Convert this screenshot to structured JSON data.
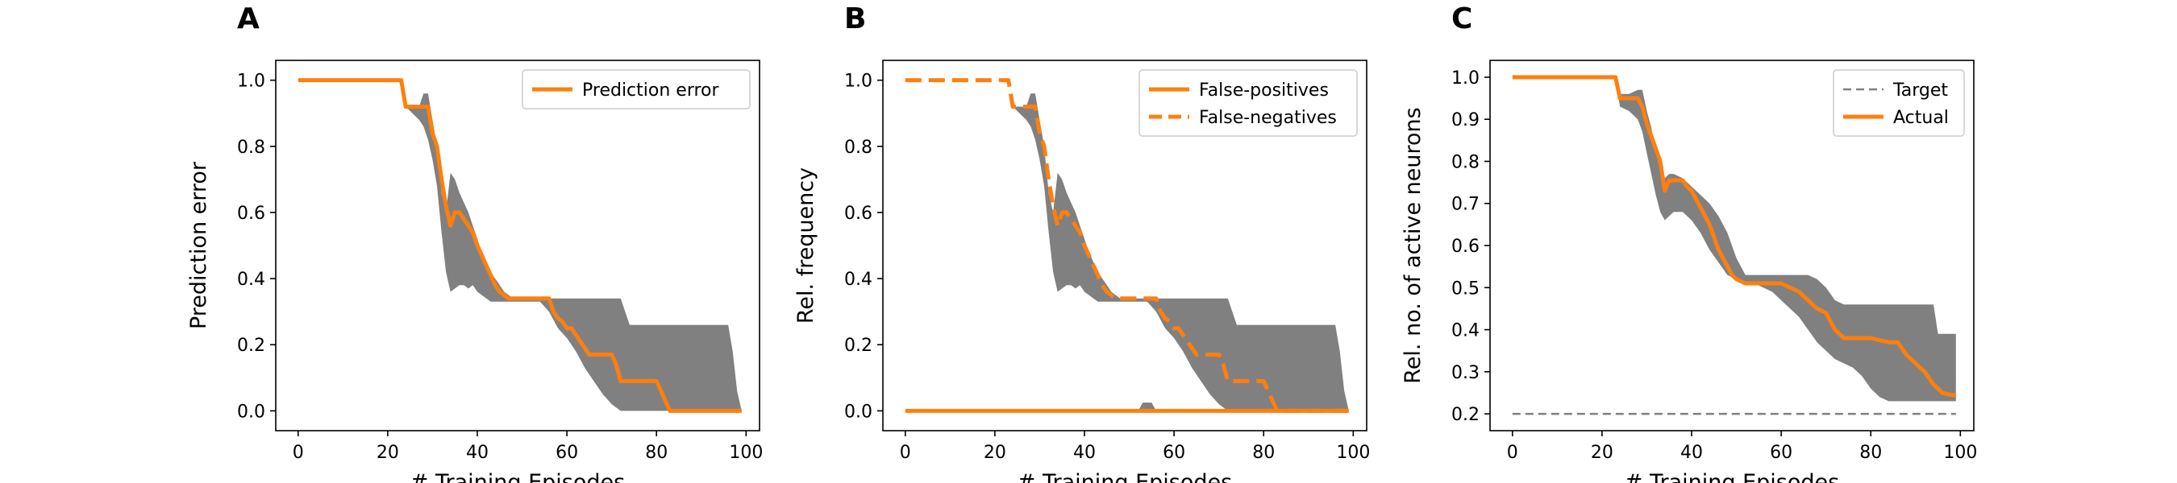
{
  "colors": {
    "actual": "#ff7f0e",
    "band": "#808080",
    "target": "#808080",
    "axis": "#000000"
  },
  "chart_data": [
    {
      "type": "line",
      "panel": "A",
      "title": "",
      "xlabel": "# Training Episodes",
      "ylabel": "Prediction error",
      "xlim": [
        -5,
        103
      ],
      "ylim": [
        -0.06,
        1.06
      ],
      "xticks": [
        0,
        20,
        40,
        60,
        80,
        100
      ],
      "xtick_labels": [
        "0",
        "20",
        "40",
        "60",
        "80",
        "100"
      ],
      "yticks": [
        0,
        0.2,
        0.4,
        0.6,
        0.8,
        1.0
      ],
      "ytick_labels": [
        "0.0",
        "0.2",
        "0.4",
        "0.6",
        "0.8",
        "1.0"
      ],
      "grid": false,
      "legend": {
        "placement": "top-right",
        "entries": [
          {
            "label": "Prediction error",
            "style": "solid",
            "series": "mean"
          }
        ]
      },
      "band": {
        "x": [
          0,
          23,
          24,
          27,
          28,
          29,
          30,
          31,
          32,
          33,
          34,
          35,
          36,
          37,
          38,
          39,
          40,
          41,
          42,
          43,
          44,
          45,
          46,
          48,
          50,
          52,
          54,
          56,
          58,
          60,
          62,
          64,
          66,
          68,
          70,
          72,
          74,
          76,
          78,
          80,
          82,
          84,
          86,
          88,
          90,
          92,
          94,
          95,
          96,
          97,
          98,
          99
        ],
        "upper": [
          1,
          1,
          0.92,
          0.92,
          0.96,
          0.96,
          0.88,
          0.8,
          0.66,
          0.6,
          0.72,
          0.7,
          0.66,
          0.63,
          0.6,
          0.56,
          0.52,
          0.48,
          0.45,
          0.42,
          0.4,
          0.38,
          0.36,
          0.34,
          0.34,
          0.34,
          0.34,
          0.34,
          0.34,
          0.34,
          0.34,
          0.34,
          0.34,
          0.34,
          0.34,
          0.34,
          0.26,
          0.26,
          0.26,
          0.26,
          0.26,
          0.26,
          0.26,
          0.26,
          0.26,
          0.26,
          0.26,
          0.26,
          0.26,
          0.18,
          0.06,
          0
        ],
        "lower": [
          1,
          1,
          0.92,
          0.88,
          0.86,
          0.82,
          0.76,
          0.68,
          0.54,
          0.42,
          0.36,
          0.37,
          0.38,
          0.38,
          0.37,
          0.38,
          0.36,
          0.35,
          0.34,
          0.33,
          0.33,
          0.33,
          0.33,
          0.33,
          0.33,
          0.33,
          0.33,
          0.3,
          0.25,
          0.22,
          0.18,
          0.13,
          0.09,
          0.05,
          0.02,
          0,
          0,
          0,
          0,
          0,
          0,
          0,
          0,
          0,
          0,
          0,
          0,
          0,
          0,
          0,
          0,
          0
        ]
      },
      "series": [
        {
          "id": "mean",
          "style": "solid",
          "x": [
            0,
            23,
            24,
            29,
            30,
            31,
            32,
            33,
            34,
            35,
            36,
            37,
            38,
            39,
            40,
            41,
            42,
            43,
            44,
            45,
            46,
            47,
            48,
            50,
            56,
            57,
            58,
            59,
            60,
            61,
            62,
            63,
            64,
            65,
            66,
            70,
            71,
            72,
            76,
            77,
            78,
            80,
            81,
            82,
            83,
            99
          ],
          "y": [
            1,
            1,
            0.92,
            0.92,
            0.84,
            0.8,
            0.7,
            0.62,
            0.56,
            0.6,
            0.6,
            0.58,
            0.56,
            0.54,
            0.5,
            0.47,
            0.44,
            0.41,
            0.38,
            0.36,
            0.35,
            0.34,
            0.34,
            0.34,
            0.34,
            0.3,
            0.28,
            0.27,
            0.25,
            0.25,
            0.23,
            0.21,
            0.19,
            0.17,
            0.17,
            0.17,
            0.14,
            0.09,
            0.09,
            0.09,
            0.09,
            0.09,
            0.06,
            0.03,
            0,
            0
          ]
        }
      ]
    },
    {
      "type": "line",
      "panel": "B",
      "title": "",
      "xlabel": "# Training Episodes",
      "ylabel": "Rel. frequency",
      "xlim": [
        -5,
        103
      ],
      "ylim": [
        -0.06,
        1.06
      ],
      "xticks": [
        0,
        20,
        40,
        60,
        80,
        100
      ],
      "xtick_labels": [
        "0",
        "20",
        "40",
        "60",
        "80",
        "100"
      ],
      "yticks": [
        0,
        0.2,
        0.4,
        0.6,
        0.8,
        1.0
      ],
      "ytick_labels": [
        "0.0",
        "0.2",
        "0.4",
        "0.6",
        "0.8",
        "1.0"
      ],
      "grid": false,
      "legend": {
        "placement": "top-right",
        "entries": [
          {
            "label": "False-positives",
            "style": "solid",
            "series": "fp"
          },
          {
            "label": "False-negatives",
            "style": "dashed",
            "series": "fn"
          }
        ]
      },
      "bands": [
        {
          "x": [
            0,
            23,
            24,
            27,
            28,
            29,
            30,
            31,
            32,
            33,
            34,
            35,
            36,
            37,
            38,
            39,
            40,
            41,
            42,
            43,
            44,
            45,
            46,
            48,
            50,
            52,
            54,
            56,
            58,
            60,
            62,
            64,
            66,
            68,
            70,
            72,
            74,
            76,
            78,
            80,
            82,
            84,
            86,
            88,
            90,
            92,
            94,
            95,
            96,
            97,
            98,
            99
          ],
          "upper": [
            1,
            1,
            0.92,
            0.92,
            0.96,
            0.96,
            0.88,
            0.8,
            0.66,
            0.6,
            0.72,
            0.7,
            0.66,
            0.63,
            0.6,
            0.56,
            0.52,
            0.48,
            0.45,
            0.42,
            0.4,
            0.38,
            0.36,
            0.34,
            0.34,
            0.34,
            0.34,
            0.34,
            0.34,
            0.34,
            0.34,
            0.34,
            0.34,
            0.34,
            0.34,
            0.34,
            0.26,
            0.26,
            0.26,
            0.26,
            0.26,
            0.26,
            0.26,
            0.26,
            0.26,
            0.26,
            0.26,
            0.26,
            0.26,
            0.18,
            0.06,
            0
          ],
          "lower": [
            1,
            1,
            0.92,
            0.88,
            0.86,
            0.82,
            0.76,
            0.68,
            0.54,
            0.42,
            0.36,
            0.37,
            0.38,
            0.38,
            0.37,
            0.38,
            0.36,
            0.35,
            0.34,
            0.33,
            0.33,
            0.33,
            0.33,
            0.33,
            0.33,
            0.33,
            0.33,
            0.3,
            0.25,
            0.22,
            0.18,
            0.13,
            0.09,
            0.05,
            0.02,
            0,
            0,
            0,
            0,
            0,
            0,
            0,
            0,
            0,
            0,
            0,
            0,
            0,
            0,
            0,
            0,
            0
          ]
        },
        {
          "x": [
            52,
            53,
            54,
            55,
            56
          ],
          "upper": [
            0,
            0.025,
            0.025,
            0.025,
            0
          ],
          "lower": [
            0,
            0,
            0,
            0,
            0
          ]
        }
      ],
      "series": [
        {
          "id": "fp",
          "style": "solid",
          "x": [
            0,
            99
          ],
          "y": [
            0,
            0
          ]
        },
        {
          "id": "fn",
          "style": "dashed",
          "x": [
            0,
            23,
            24,
            29,
            30,
            31,
            32,
            33,
            34,
            35,
            36,
            37,
            38,
            39,
            40,
            41,
            42,
            43,
            44,
            45,
            46,
            47,
            48,
            50,
            56,
            57,
            58,
            59,
            60,
            61,
            62,
            63,
            64,
            65,
            66,
            70,
            71,
            72,
            76,
            77,
            78,
            80,
            81,
            82,
            83,
            99
          ],
          "y": [
            1,
            1,
            0.92,
            0.92,
            0.84,
            0.8,
            0.7,
            0.62,
            0.56,
            0.6,
            0.6,
            0.58,
            0.56,
            0.54,
            0.5,
            0.47,
            0.44,
            0.41,
            0.38,
            0.36,
            0.35,
            0.34,
            0.34,
            0.34,
            0.34,
            0.3,
            0.28,
            0.27,
            0.25,
            0.25,
            0.23,
            0.21,
            0.19,
            0.17,
            0.17,
            0.17,
            0.14,
            0.09,
            0.09,
            0.09,
            0.09,
            0.09,
            0.06,
            0.03,
            0,
            0
          ]
        }
      ]
    },
    {
      "type": "line",
      "panel": "C",
      "title": "",
      "xlabel": "# Training Episodes",
      "ylabel": "Rel. no. of active neurons",
      "xlim": [
        -5,
        103
      ],
      "ylim": [
        0.16,
        1.04
      ],
      "xticks": [
        0,
        20,
        40,
        60,
        80,
        100
      ],
      "xtick_labels": [
        "0",
        "20",
        "40",
        "60",
        "80",
        "100"
      ],
      "yticks": [
        0.2,
        0.3,
        0.4,
        0.5,
        0.6,
        0.7,
        0.8,
        0.9,
        1.0
      ],
      "ytick_labels": [
        "0.2",
        "0.3",
        "0.4",
        "0.5",
        "0.6",
        "0.7",
        "0.8",
        "0.9",
        "1.0"
      ],
      "grid": false,
      "legend": {
        "placement": "top-right",
        "entries": [
          {
            "label": "Target",
            "style": "dashed",
            "series": "target"
          },
          {
            "label": "Actual",
            "style": "solid",
            "series": "actual"
          }
        ]
      },
      "band": {
        "x": [
          0,
          23,
          24,
          26,
          28,
          29,
          30,
          31,
          32,
          33,
          34,
          35,
          36,
          38,
          40,
          42,
          44,
          46,
          48,
          50,
          52,
          54,
          56,
          58,
          60,
          62,
          64,
          66,
          68,
          70,
          72,
          74,
          76,
          78,
          80,
          82,
          84,
          86,
          88,
          90,
          92,
          94,
          95,
          96,
          97,
          98,
          99
        ],
        "upper": [
          1,
          1,
          0.96,
          0.96,
          0.97,
          0.97,
          0.92,
          0.88,
          0.82,
          0.78,
          0.76,
          0.77,
          0.77,
          0.76,
          0.74,
          0.72,
          0.7,
          0.67,
          0.63,
          0.57,
          0.53,
          0.53,
          0.53,
          0.53,
          0.53,
          0.53,
          0.53,
          0.53,
          0.52,
          0.5,
          0.47,
          0.46,
          0.46,
          0.46,
          0.46,
          0.46,
          0.46,
          0.46,
          0.46,
          0.46,
          0.46,
          0.46,
          0.39,
          0.39,
          0.39,
          0.39,
          0.39
        ],
        "lower": [
          1,
          1,
          0.93,
          0.92,
          0.9,
          0.87,
          0.82,
          0.77,
          0.72,
          0.68,
          0.66,
          0.67,
          0.68,
          0.68,
          0.66,
          0.63,
          0.59,
          0.56,
          0.53,
          0.52,
          0.51,
          0.51,
          0.5,
          0.49,
          0.47,
          0.45,
          0.43,
          0.4,
          0.37,
          0.35,
          0.33,
          0.32,
          0.31,
          0.29,
          0.26,
          0.24,
          0.23,
          0.23,
          0.23,
          0.23,
          0.23,
          0.23,
          0.23,
          0.23,
          0.23,
          0.23,
          0.23
        ]
      },
      "series": [
        {
          "id": "target",
          "style": "dashed",
          "x": [
            0,
            99
          ],
          "y": [
            0.2,
            0.2
          ]
        },
        {
          "id": "actual",
          "style": "solid",
          "x": [
            0,
            23,
            24,
            28,
            29,
            30,
            31,
            32,
            33,
            34,
            35,
            36,
            37,
            38,
            39,
            40,
            41,
            42,
            43,
            44,
            45,
            46,
            47,
            48,
            49,
            50,
            51,
            52,
            60,
            61,
            62,
            64,
            66,
            68,
            70,
            71,
            72,
            74,
            76,
            78,
            80,
            84,
            86,
            88,
            90,
            92,
            94,
            96,
            98,
            99
          ],
          "y": [
            1,
            1,
            0.95,
            0.95,
            0.93,
            0.89,
            0.86,
            0.83,
            0.8,
            0.73,
            0.755,
            0.755,
            0.755,
            0.755,
            0.74,
            0.73,
            0.71,
            0.69,
            0.67,
            0.65,
            0.62,
            0.59,
            0.57,
            0.55,
            0.53,
            0.52,
            0.515,
            0.51,
            0.51,
            0.505,
            0.5,
            0.49,
            0.47,
            0.45,
            0.44,
            0.42,
            0.4,
            0.38,
            0.38,
            0.38,
            0.38,
            0.37,
            0.37,
            0.34,
            0.32,
            0.3,
            0.27,
            0.25,
            0.245,
            0.245
          ]
        }
      ]
    }
  ]
}
